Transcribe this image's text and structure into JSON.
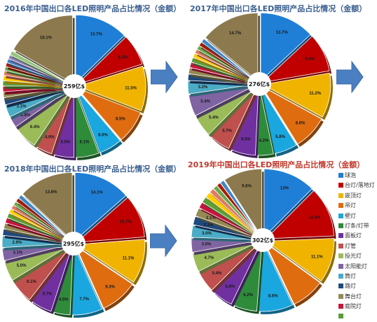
{
  "panels": [
    {
      "title": "2016年中国出口各LED照明产品占比情况（金额）",
      "total": "259亿$"
    },
    {
      "title": "2017年中国出口各LED照明产品占比情况（金额）",
      "total": "276亿$"
    },
    {
      "title": "2018年中国出口各LED照明产品占比情况（金额）",
      "total": "295亿$"
    },
    {
      "title": "2019年中国出口各LED照明产品占比情况（金额）",
      "total": "302亿$"
    }
  ],
  "legend": {
    "items": [
      "球泡",
      "台灯/落地灯",
      "嵌顶灯",
      "吊灯",
      "壁灯",
      "灯条/灯带",
      "面板灯",
      "灯管",
      "投光灯",
      "太阳能灯",
      "筒灯",
      "路灯",
      "舞台灯",
      "庭院灯",
      "",
      ""
    ]
  },
  "colors": [
    "#1f7fd6",
    "#c00000",
    "#f0b400",
    "#e06c10",
    "#1aa7e0",
    "#2e8b3a",
    "#7030a0",
    "#c0504d",
    "#9bbb59",
    "#8064a2",
    "#4bacc6",
    "#1f497d",
    "#948a54",
    "#c8143c",
    "#5a9e3a",
    "#ffcc00",
    "#e07a5f",
    "#6aa84f",
    "#a61c00",
    "#3d85c6",
    "#8e7cc3",
    "#93c47d",
    "#8c7a4e"
  ],
  "chart_data": [
    {
      "type": "pie",
      "title": "2016年中国出口各LED照明产品占比情况（金额）",
      "center_label": "259亿$",
      "values": [
        13.7,
        8.1,
        11.5,
        8.5,
        6.0,
        6.1,
        5.5,
        4.6,
        6.4,
        2.8,
        3.1,
        1.8,
        1.4,
        1.4,
        1.3,
        1.3,
        1.2,
        1.0,
        1.0,
        1.0,
        1.0,
        1.1,
        18.1
      ],
      "labels": [
        "13.7%",
        "8.1%",
        "11.5%",
        "8.5%",
        "6.0%",
        "6.1%",
        "5.5%",
        "4.6%",
        "6.4%",
        "2.8%",
        "3.1%",
        "",
        "",
        "",
        "",
        "",
        "",
        "",
        "",
        "",
        "",
        "",
        "18.1%"
      ]
    },
    {
      "type": "pie",
      "title": "2017年中国出口各LED照明产品占比情况（金额）",
      "center_label": "276亿$",
      "values": [
        13.7,
        9.6,
        11.2,
        8.6,
        5.8,
        4.2,
        6.5,
        5.7,
        5.4,
        5.4,
        3.2,
        1.6,
        1.5,
        1.3,
        1.2,
        1.1,
        1.0,
        1.0,
        1.0,
        1.0,
        14.7
      ],
      "labels": [
        "13.7%",
        "9.6%",
        "11.2%",
        "8.6%",
        "5.8%",
        "4.2%",
        "6.5%",
        "5.7%",
        "5.4%",
        "5.4%",
        "3.2%",
        "",
        "",
        "",
        "",
        "",
        "",
        "",
        "",
        "",
        "14.7%"
      ]
    },
    {
      "type": "pie",
      "title": "2018年中国出口各LED照明产品占比情况（金额）",
      "center_label": "295亿$",
      "values": [
        14.1,
        10.7,
        11.1,
        9.3,
        7.7,
        4.5,
        5.7,
        6.1,
        5.0,
        3.1,
        2.9,
        1.6,
        1.4,
        1.3,
        1.2,
        1.1,
        1.0,
        1.0,
        1.0,
        1.0,
        13.6
      ],
      "labels": [
        "14.1%",
        "10.7%",
        "11.1%",
        "9.3%",
        "7.7%",
        "4.5%",
        "5.7%",
        "6.1%",
        "5.0%",
        "3.1%",
        "2.9%",
        "",
        "",
        "",
        "",
        "",
        "",
        "",
        "",
        "",
        "13.6%"
      ]
    },
    {
      "type": "pie",
      "title": "2019年中国出口各LED照明产品占比情况（金额）",
      "center_label": "302亿$",
      "values": [
        13.0,
        12.4,
        11.1,
        8.3,
        8.6,
        6.2,
        5.6,
        5.4,
        4.7,
        3.5,
        3.0,
        2.1,
        2.1,
        1.5,
        1.5,
        1.4,
        1.2,
        1.1,
        1.0,
        1.0,
        9.6
      ],
      "labels": [
        "13%",
        "12.4%",
        "11.1%",
        "",
        "8.6%",
        "6.2%",
        "5.6%",
        "5.4%",
        "4.7%",
        "3.5%",
        "3.0%",
        "2.1%",
        "2.1%",
        "",
        "",
        "",
        "",
        "",
        "",
        "",
        "9.6%"
      ]
    }
  ]
}
